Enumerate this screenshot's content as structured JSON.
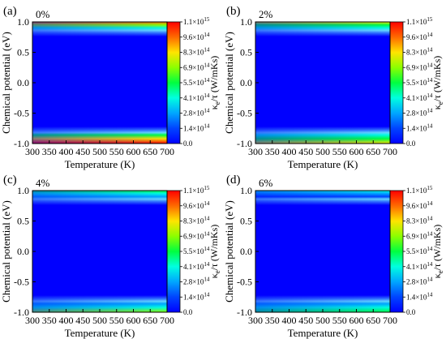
{
  "chart_data": [
    {
      "type": "heatmap",
      "panel_label": "(a)",
      "strain_label": "0%",
      "xlabel": "Temperature (K)",
      "ylabel": "Chemical potential (eV)",
      "colorbar_label": "κ",
      "colorbar_sub": "e",
      "colorbar_rest": "/τ (W/mKs)",
      "x_ticks": [
        "300",
        "350",
        "400",
        "450",
        "500",
        "550",
        "600",
        "650",
        "700"
      ],
      "y_ticks": [
        "1.0",
        "0.5",
        "0.0",
        "-0.5",
        "-1.0"
      ],
      "colorbar_ticks": [
        {
          "mant": "1.1×10",
          "exp": "15"
        },
        {
          "mant": "9.6×10",
          "exp": "14"
        },
        {
          "mant": "8.3×10",
          "exp": "14"
        },
        {
          "mant": "6.9×10",
          "exp": "14"
        },
        {
          "mant": "5.5×10",
          "exp": "14"
        },
        {
          "mant": "4.1×10",
          "exp": "14"
        },
        {
          "mant": "2.8×10",
          "exp": "14"
        },
        {
          "mant": "1.4×10",
          "exp": "14"
        },
        {
          "mant": "0.0",
          "exp": ""
        }
      ],
      "xlim": [
        300,
        700
      ],
      "ylim": [
        -1.0,
        1.0
      ],
      "clim": [
        0,
        1100000000000000.0
      ],
      "band": {
        "upper_peak": 0.85,
        "lower_peak": 1.0
      },
      "colormap": [
        "#0000ff",
        "#0044ff",
        "#00a6ff",
        "#00ffe0",
        "#00ff40",
        "#8cff00",
        "#ffe400",
        "#ff6a00",
        "#ff0000"
      ]
    },
    {
      "type": "heatmap",
      "panel_label": "(b)",
      "strain_label": "2%",
      "xlabel": "Temperature (K)",
      "ylabel": "Chemical potential (eV)",
      "colorbar_label": "κ",
      "colorbar_sub": "e",
      "colorbar_rest": "/τ (W/mKs)",
      "x_ticks": [
        "300",
        "350",
        "400",
        "450",
        "500",
        "550",
        "600",
        "650",
        "700"
      ],
      "y_ticks": [
        "1.0",
        "0.5",
        "0.0",
        "-0.5",
        "-1.0"
      ],
      "colorbar_ticks": [
        {
          "mant": "1.1×10",
          "exp": "15"
        },
        {
          "mant": "9.6×10",
          "exp": "14"
        },
        {
          "mant": "8.3×10",
          "exp": "14"
        },
        {
          "mant": "6.9×10",
          "exp": "14"
        },
        {
          "mant": "5.5×10",
          "exp": "14"
        },
        {
          "mant": "4.1×10",
          "exp": "14"
        },
        {
          "mant": "2.8×10",
          "exp": "14"
        },
        {
          "mant": "1.4×10",
          "exp": "14"
        },
        {
          "mant": "0.0",
          "exp": ""
        }
      ],
      "xlim": [
        300,
        700
      ],
      "ylim": [
        -1.0,
        1.0
      ],
      "clim": [
        0,
        1100000000000000.0
      ],
      "band": {
        "upper_peak": 0.7,
        "lower_peak": 0.75
      },
      "colormap": [
        "#0000ff",
        "#0044ff",
        "#00a6ff",
        "#00ffe0",
        "#00ff40",
        "#8cff00",
        "#ffe400",
        "#ff6a00",
        "#ff0000"
      ]
    },
    {
      "type": "heatmap",
      "panel_label": "(c)",
      "strain_label": "4%",
      "xlabel": "Temperature (K)",
      "ylabel": "Chemical potential (eV)",
      "colorbar_label": "κ",
      "colorbar_sub": "e",
      "colorbar_rest": "/τ (W/mKs)",
      "x_ticks": [
        "300",
        "350",
        "400",
        "450",
        "500",
        "550",
        "600",
        "650",
        "700"
      ],
      "y_ticks": [
        "1.0",
        "0.5",
        "0.0",
        "-0.5",
        "-1.0"
      ],
      "colorbar_ticks": [
        {
          "mant": "1.1×10",
          "exp": "15"
        },
        {
          "mant": "9.6×10",
          "exp": "14"
        },
        {
          "mant": "8.3×10",
          "exp": "14"
        },
        {
          "mant": "6.9×10",
          "exp": "14"
        },
        {
          "mant": "5.5×10",
          "exp": "14"
        },
        {
          "mant": "4.1×10",
          "exp": "14"
        },
        {
          "mant": "2.8×10",
          "exp": "14"
        },
        {
          "mant": "1.4×10",
          "exp": "14"
        },
        {
          "mant": "0.0",
          "exp": ""
        }
      ],
      "xlim": [
        300,
        700
      ],
      "ylim": [
        -1.0,
        1.0
      ],
      "clim": [
        0,
        1100000000000000.0
      ],
      "band": {
        "upper_peak": 0.55,
        "lower_peak": 0.6
      },
      "colormap": [
        "#0000ff",
        "#0044ff",
        "#00a6ff",
        "#00ffe0",
        "#00ff40",
        "#8cff00",
        "#ffe400",
        "#ff6a00",
        "#ff0000"
      ]
    },
    {
      "type": "heatmap",
      "panel_label": "(d)",
      "strain_label": "6%",
      "xlabel": "Temperature (K)",
      "ylabel": "Chemical potential (eV)",
      "colorbar_label": "κ",
      "colorbar_sub": "e",
      "colorbar_rest": "/τ (W/mKs)",
      "x_ticks": [
        "300",
        "350",
        "400",
        "450",
        "500",
        "550",
        "600",
        "650",
        "700"
      ],
      "y_ticks": [
        "1.0",
        "0.5",
        "0.0",
        "-0.5",
        "-1.0"
      ],
      "colorbar_ticks": [
        {
          "mant": "1.1×10",
          "exp": "15"
        },
        {
          "mant": "9.6×10",
          "exp": "14"
        },
        {
          "mant": "8.3×10",
          "exp": "14"
        },
        {
          "mant": "6.9×10",
          "exp": "14"
        },
        {
          "mant": "5.5×10",
          "exp": "14"
        },
        {
          "mant": "4.1×10",
          "exp": "14"
        },
        {
          "mant": "2.8×10",
          "exp": "14"
        },
        {
          "mant": "1.4×10",
          "exp": "14"
        },
        {
          "mant": "0.0",
          "exp": ""
        }
      ],
      "xlim": [
        300,
        700
      ],
      "ylim": [
        -1.0,
        1.0
      ],
      "clim": [
        0,
        1100000000000000.0
      ],
      "band": {
        "upper_peak": 0.4,
        "lower_peak": 0.5
      },
      "colormap": [
        "#0000ff",
        "#0044ff",
        "#00a6ff",
        "#00ffe0",
        "#00ff40",
        "#8cff00",
        "#ffe400",
        "#ff6a00",
        "#ff0000"
      ]
    }
  ]
}
